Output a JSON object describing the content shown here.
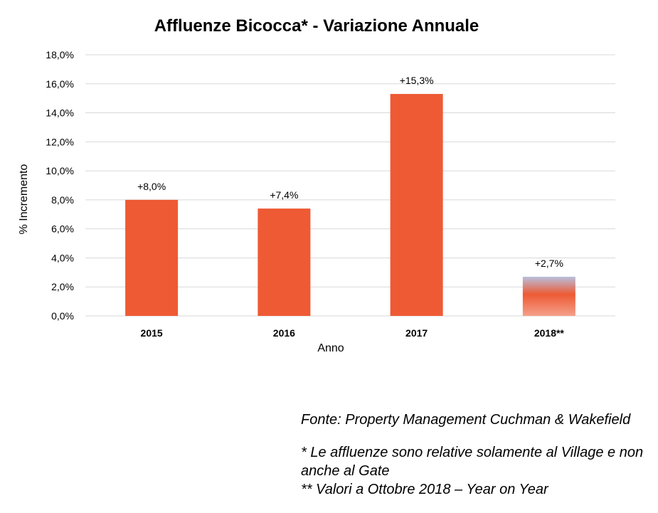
{
  "chart_data": {
    "type": "bar",
    "title": "Affluenze Bicocca* - Variazione Annuale",
    "xlabel": "Anno",
    "ylabel": "% Incremento",
    "categories": [
      "2015",
      "2016",
      "2017",
      "2018**"
    ],
    "values": [
      8.0,
      7.4,
      15.3,
      2.7
    ],
    "data_labels": [
      "+8,0%",
      "+7,4%",
      "+15,3%",
      "+2,7%"
    ],
    "ylim": [
      0,
      18
    ],
    "yticks": [
      0,
      2,
      4,
      6,
      8,
      10,
      12,
      14,
      16,
      18
    ],
    "ytick_labels": [
      "0,0%",
      "2,0%",
      "4,0%",
      "6,0%",
      "8,0%",
      "10,0%",
      "12,0%",
      "14,0%",
      "16,0%",
      "18,0%"
    ],
    "grid": true,
    "legend": "none",
    "colors": {
      "bar": "#EE5A34",
      "bar_partial_top": "#B8C0DC",
      "bar_partial_bottom": "#F4A08A",
      "grid": "#D9D9D9"
    }
  },
  "notes": {
    "source": "Fonte: Property Management Cuchman & Wakefield",
    "note1": "* Le affluenze sono relative  solamente al Village e non anche al Gate",
    "note2": "** Valori a Ottobre 2018 – Year on Year"
  }
}
